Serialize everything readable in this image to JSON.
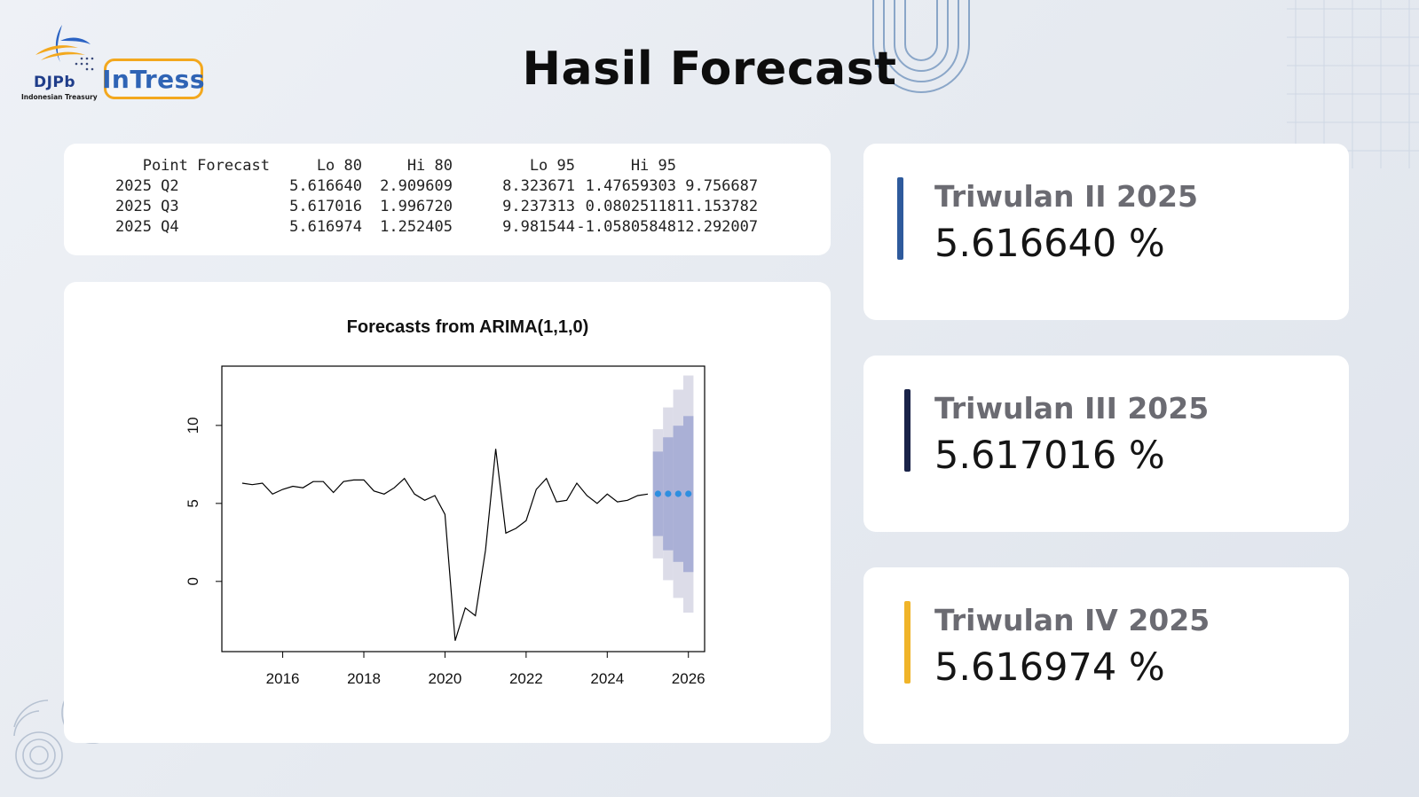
{
  "header": {
    "title": "Hasil Forecast",
    "logo": {
      "djpb_text": "DJPb",
      "djpb_subtitle": "Indonesian Treasury",
      "intress_text": "InTress"
    }
  },
  "forecast_table": {
    "columns": [
      "Point Forecast",
      "Lo 80",
      "Hi 80",
      "Lo 95",
      "Hi 95"
    ],
    "rows": [
      {
        "period": "2025 Q2",
        "point": "5.616640",
        "lo80": "2.909609",
        "hi80": "8.323671",
        "lo95": "1.47659303",
        "hi95": "9.756687"
      },
      {
        "period": "2025 Q3",
        "point": "5.617016",
        "lo80": "1.996720",
        "hi80": "9.237313",
        "lo95": "0.08025118",
        "hi95": "11.153782"
      },
      {
        "period": "2025 Q4",
        "point": "5.616974",
        "lo80": "1.252405",
        "hi80": "9.981544",
        "lo95": "-1.05805848",
        "hi95": "12.292007"
      }
    ]
  },
  "chart_data": {
    "type": "line",
    "title": "Forecasts from ARIMA(1,1,0)",
    "xlabel": "",
    "ylabel": "",
    "xlim": [
      2014.5,
      2026.4
    ],
    "ylim": [
      -4.5,
      13.8
    ],
    "x_ticks": [
      2016,
      2018,
      2020,
      2022,
      2024,
      2026
    ],
    "x_tick_labels": [
      "2016",
      "2018",
      "2020",
      "2022",
      "2024",
      "2026"
    ],
    "y_ticks": [
      0,
      5,
      10
    ],
    "y_tick_labels": [
      "0",
      "5",
      "10"
    ],
    "grid": false,
    "series": [
      {
        "role": "historical",
        "color": "#000000",
        "points": [
          [
            2015.0,
            6.3
          ],
          [
            2015.25,
            6.2
          ],
          [
            2015.5,
            6.3
          ],
          [
            2015.75,
            5.6
          ],
          [
            2016.0,
            5.9
          ],
          [
            2016.25,
            6.1
          ],
          [
            2016.5,
            6.0
          ],
          [
            2016.75,
            6.4
          ],
          [
            2017.0,
            6.4
          ],
          [
            2017.25,
            5.7
          ],
          [
            2017.5,
            6.4
          ],
          [
            2017.75,
            6.5
          ],
          [
            2018.0,
            6.5
          ],
          [
            2018.25,
            5.8
          ],
          [
            2018.5,
            5.6
          ],
          [
            2018.75,
            6.0
          ],
          [
            2019.0,
            6.6
          ],
          [
            2019.25,
            5.6
          ],
          [
            2019.5,
            5.2
          ],
          [
            2019.75,
            5.5
          ],
          [
            2020.0,
            4.3
          ],
          [
            2020.25,
            -3.8
          ],
          [
            2020.5,
            -1.7
          ],
          [
            2020.75,
            -2.2
          ],
          [
            2021.0,
            2.0
          ],
          [
            2021.25,
            8.5
          ],
          [
            2021.5,
            3.1
          ],
          [
            2021.75,
            3.4
          ],
          [
            2022.0,
            3.9
          ],
          [
            2022.25,
            5.9
          ],
          [
            2022.5,
            6.6
          ],
          [
            2022.75,
            5.1
          ],
          [
            2023.0,
            5.2
          ],
          [
            2023.25,
            6.3
          ],
          [
            2023.5,
            5.5
          ],
          [
            2023.75,
            5.0
          ],
          [
            2024.0,
            5.6
          ],
          [
            2024.25,
            5.1
          ],
          [
            2024.5,
            5.2
          ],
          [
            2024.75,
            5.5
          ],
          [
            2025.0,
            5.6
          ]
        ]
      },
      {
        "role": "forecast",
        "color": "#2e8fe0",
        "x": [
          2025.25,
          2025.5,
          2025.75,
          2026.0
        ],
        "values": [
          5.61664,
          5.617016,
          5.616974,
          5.6169
        ]
      }
    ],
    "intervals": [
      {
        "level": "95",
        "color": "#dcdce8",
        "lower": [
          1.47659303,
          0.08025118,
          -1.05805848,
          -2.0
        ],
        "upper": [
          9.756687,
          11.153782,
          12.292007,
          13.2
        ]
      },
      {
        "level": "80",
        "color": "#aab0d6",
        "lower": [
          2.909609,
          1.99672,
          1.252405,
          0.6
        ],
        "upper": [
          8.323671,
          9.237313,
          9.981544,
          10.6
        ]
      }
    ]
  },
  "stats": [
    {
      "label": "Triwulan II 2025",
      "value": "5.616640 %",
      "accent": "#2e5a9c"
    },
    {
      "label": "Triwulan III 2025",
      "value": "5.617016 %",
      "accent": "#1a2348"
    },
    {
      "label": "Triwulan IV 2025",
      "value": "5.616974 %",
      "accent": "#f0b429"
    }
  ]
}
